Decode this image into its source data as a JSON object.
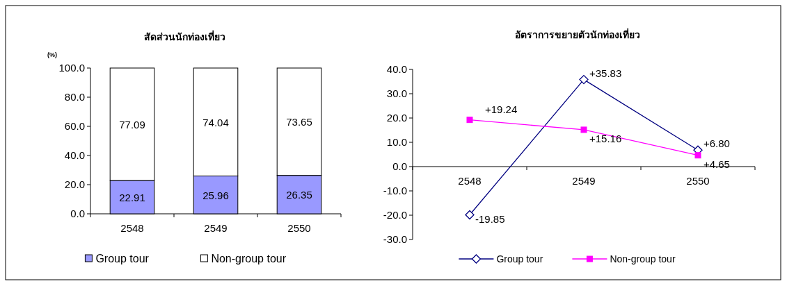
{
  "chart_data": [
    {
      "type": "bar",
      "title": "สัดส่วนนักท่องเที่ยว",
      "ylabel": "(%)",
      "categories": [
        "2548",
        "2549",
        "2550"
      ],
      "stacked": true,
      "data_labels": true,
      "legend": "bottom",
      "ylim": [
        0,
        100
      ],
      "yticks": [
        {
          "value": 0,
          "label": "0.0"
        },
        {
          "value": 20,
          "label": "20.0"
        },
        {
          "value": 40,
          "label": "40.0"
        },
        {
          "value": 60,
          "label": "60.0"
        },
        {
          "value": 80,
          "label": "80.0"
        },
        {
          "value": 100,
          "label": "100.0"
        }
      ],
      "series": [
        {
          "name": "Group tour",
          "color": "#9999ff",
          "values": [
            22.91,
            25.96,
            26.35
          ]
        },
        {
          "name": "Non-group tour",
          "color": "#ffffff",
          "values": [
            77.09,
            74.04,
            73.65
          ]
        }
      ]
    },
    {
      "type": "line",
      "title": "อัตราการขยายตัวนักท่องเที่ยว",
      "categories": [
        "2548",
        "2549",
        "2550"
      ],
      "legend": "bottom",
      "ylim": [
        -30,
        40
      ],
      "yticks": [
        {
          "value": -30,
          "label": "-30.0"
        },
        {
          "value": -20,
          "label": "-20.0"
        },
        {
          "value": -10,
          "label": "-10.0"
        },
        {
          "value": 0,
          "label": "0.0"
        },
        {
          "value": 10,
          "label": "10.0"
        },
        {
          "value": 20,
          "label": "20.0"
        },
        {
          "value": 30,
          "label": "30.0"
        },
        {
          "value": 40,
          "label": "40.0"
        }
      ],
      "series": [
        {
          "name": "Group tour",
          "color": "#000080",
          "marker": "diamond",
          "values": [
            -19.85,
            35.83,
            6.8
          ],
          "value_labels": [
            "-19.85",
            "+35.83",
            "+6.80"
          ]
        },
        {
          "name": "Non-group tour",
          "color": "#ff00ff",
          "marker": "square",
          "values": [
            19.24,
            15.16,
            4.65
          ],
          "value_labels": [
            "+19.24",
            "+15.16",
            "+4.65"
          ]
        }
      ]
    }
  ]
}
